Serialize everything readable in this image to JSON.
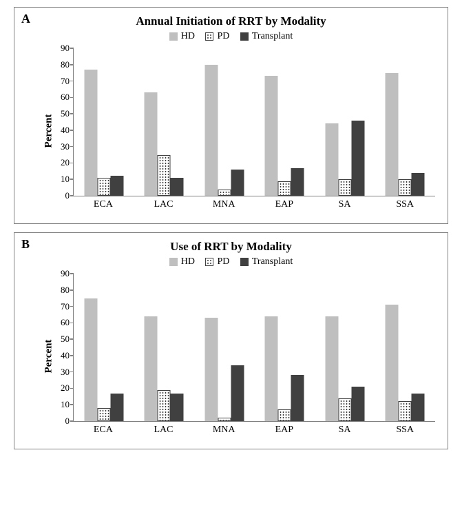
{
  "panels": [
    {
      "label": "A",
      "title": "Annual Initiation of RRT by Modality",
      "ylabel": "Percent",
      "ylim": [
        0,
        90
      ],
      "ytick_step": 10,
      "categories": [
        "ECA",
        "LAC",
        "MNA",
        "EAP",
        "SA",
        "SSA"
      ],
      "series_labels": [
        "HD",
        "PD",
        "Transplant"
      ],
      "series_colors": [
        "#bfbfbf",
        "#ffffff",
        "#404040"
      ],
      "pd_border_color": "#404040",
      "pd_dot_color": "#3a3a3a",
      "axis_color": "#808080",
      "values": {
        "HD": [
          77,
          63,
          80,
          73,
          44,
          75
        ],
        "PD": [
          11,
          25,
          4,
          9,
          10,
          10
        ],
        "Transplant": [
          12,
          11,
          16,
          17,
          46,
          14
        ]
      }
    },
    {
      "label": "B",
      "title": "Use of RRT by Modality",
      "ylabel": "Percent",
      "ylim": [
        0,
        90
      ],
      "ytick_step": 10,
      "categories": [
        "ECA",
        "LAC",
        "MNA",
        "EAP",
        "SA",
        "SSA"
      ],
      "series_labels": [
        "HD",
        "PD",
        "Transplant"
      ],
      "series_colors": [
        "#bfbfbf",
        "#ffffff",
        "#404040"
      ],
      "pd_border_color": "#404040",
      "pd_dot_color": "#3a3a3a",
      "axis_color": "#808080",
      "values": {
        "HD": [
          75,
          64,
          63,
          64,
          64,
          71
        ],
        "PD": [
          8,
          19,
          2,
          7,
          14,
          12
        ],
        "Transplant": [
          17,
          17,
          34,
          28,
          21,
          17
        ]
      }
    }
  ],
  "title_fontsize": 17,
  "panel_label_fontsize": 18,
  "tick_fontsize": 13,
  "ylabel_fontsize": 15,
  "xlabel_fontsize": 14,
  "legend_fontsize": 14,
  "background_color": "#ffffff"
}
